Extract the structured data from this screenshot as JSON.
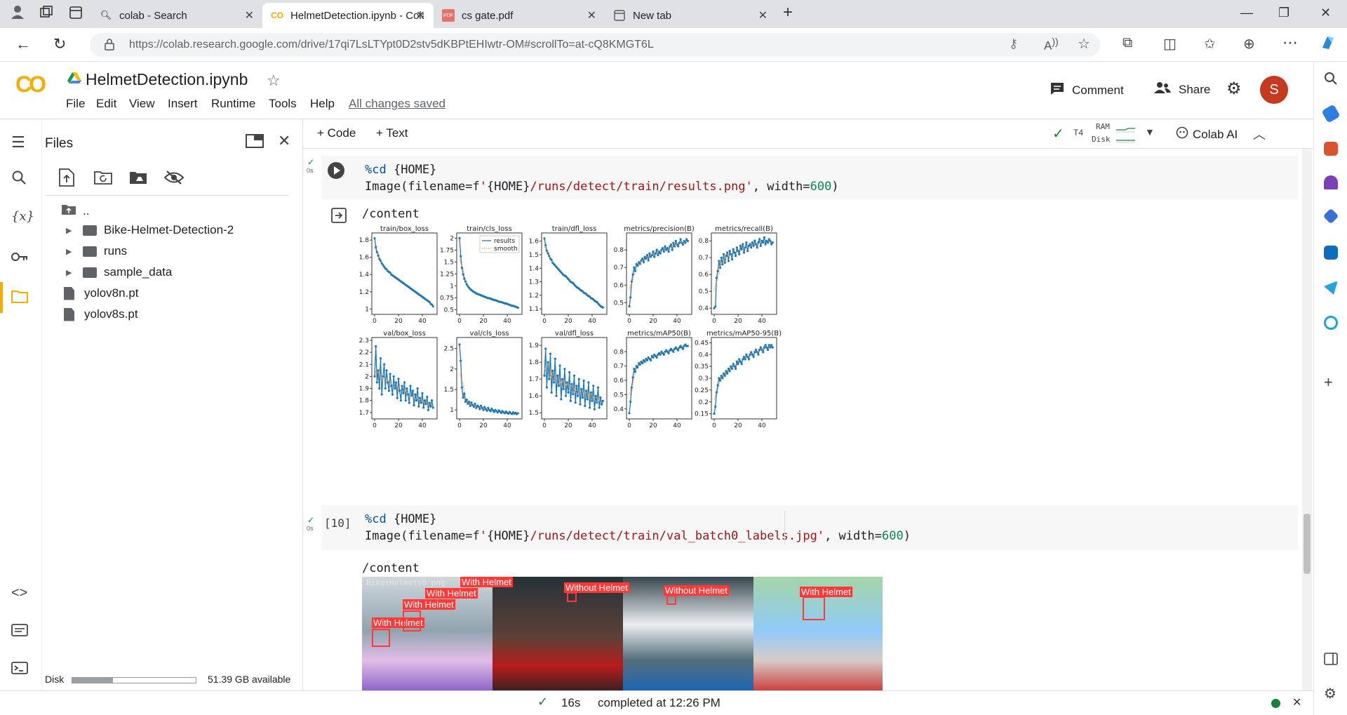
{
  "browser": {
    "tabs": [
      {
        "label": "colab - Search",
        "icon": "search-icon"
      },
      {
        "label": "HelmetDetection.ipynb - Colabo",
        "icon": "colab-logo-icon"
      },
      {
        "label": "cs gate.pdf",
        "icon": "pdf-icon"
      },
      {
        "label": "New tab",
        "icon": "new-tab-page-icon"
      }
    ],
    "url": "https://colab.research.google.com/drive/17qi7LsLTYpt0D2stv5dKBPtEHIwtr-OM#scrollTo=at-cQ8KMGT6L"
  },
  "colab": {
    "logo": "CO",
    "notebook_title": "HelmetDetection.ipynb",
    "menu": [
      "File",
      "Edit",
      "View",
      "Insert",
      "Runtime",
      "Tools",
      "Help"
    ],
    "saved_status": "All changes saved",
    "comment_label": "Comment",
    "share_label": "Share",
    "avatar_letter": "S",
    "add_code": "+ Code",
    "add_text": "+ Text",
    "runtime_type": "T4",
    "ram_label": "RAM",
    "disk_label": "Disk",
    "colab_ai": "Colab AI"
  },
  "files": {
    "title": "Files",
    "tree": [
      {
        "name": "..",
        "kind": "up"
      },
      {
        "name": "Bike-Helmet-Detection-2",
        "kind": "folder"
      },
      {
        "name": "runs",
        "kind": "folder"
      },
      {
        "name": "sample_data",
        "kind": "folder"
      },
      {
        "name": "yolov8n.pt",
        "kind": "file"
      },
      {
        "name": "yolov8s.pt",
        "kind": "file"
      }
    ],
    "disk_label": "Disk",
    "disk_available": "51.39 GB available",
    "disk_used_fraction": 0.33
  },
  "cells": [
    {
      "exec_time": "0s",
      "line1": "%cd {HOME}",
      "line2": "Image(filename=f'{HOME}/runs/detect/train/results.png', width=600)",
      "output_text": "/content"
    },
    {
      "exec_count": "[10]",
      "exec_time": "0s",
      "line1": "%cd {HOME}",
      "line2": "Image(filename=f'{HOME}/runs/detect/train/val_batch0_labels.jpg', width=600)",
      "output_text": "/content"
    }
  ],
  "chart_data": {
    "type": "line",
    "panels": [
      {
        "title": "train/box_loss",
        "xlim": [
          0,
          50
        ],
        "yticks": [
          1.0,
          1.2,
          1.4,
          1.6,
          1.8
        ],
        "ylim": [
          0.97,
          1.85
        ],
        "values": [
          1.82,
          1.72,
          1.66,
          1.62,
          1.58,
          1.56,
          1.53,
          1.51,
          1.49,
          1.47,
          1.46,
          1.44,
          1.43,
          1.42,
          1.4,
          1.39,
          1.38,
          1.37,
          1.36,
          1.35,
          1.34,
          1.33,
          1.32,
          1.31,
          1.3,
          1.29,
          1.28,
          1.27,
          1.26,
          1.25,
          1.24,
          1.23,
          1.22,
          1.21,
          1.2,
          1.19,
          1.18,
          1.17,
          1.16,
          1.15,
          1.14,
          1.13,
          1.12,
          1.11,
          1.1,
          1.09,
          1.08,
          1.06,
          1.05,
          1.03
        ]
      },
      {
        "title": "train/cls_loss",
        "xlim": [
          0,
          50
        ],
        "yticks": [
          0.5,
          0.75,
          1.0,
          1.25,
          1.5,
          1.75,
          2.0
        ],
        "ylim": [
          0.46,
          2.05
        ],
        "values": [
          2.0,
          1.62,
          1.38,
          1.24,
          1.15,
          1.09,
          1.03,
          0.99,
          0.96,
          0.93,
          0.91,
          0.89,
          0.87,
          0.86,
          0.84,
          0.83,
          0.82,
          0.81,
          0.8,
          0.79,
          0.78,
          0.77,
          0.76,
          0.75,
          0.74,
          0.74,
          0.73,
          0.72,
          0.71,
          0.7,
          0.7,
          0.69,
          0.68,
          0.67,
          0.66,
          0.66,
          0.65,
          0.64,
          0.63,
          0.63,
          0.62,
          0.61,
          0.6,
          0.59,
          0.58,
          0.58,
          0.57,
          0.56,
          0.55,
          0.54
        ],
        "legend": [
          "results",
          "smooth"
        ]
      },
      {
        "title": "train/dfl_loss",
        "xlim": [
          0,
          50
        ],
        "yticks": [
          1.1,
          1.2,
          1.3,
          1.4,
          1.5,
          1.6
        ],
        "ylim": [
          1.08,
          1.64
        ],
        "values": [
          1.62,
          1.57,
          1.53,
          1.51,
          1.49,
          1.47,
          1.46,
          1.44,
          1.43,
          1.42,
          1.41,
          1.4,
          1.39,
          1.38,
          1.37,
          1.36,
          1.35,
          1.345,
          1.34,
          1.33,
          1.32,
          1.31,
          1.3,
          1.295,
          1.29,
          1.28,
          1.27,
          1.26,
          1.255,
          1.25,
          1.24,
          1.235,
          1.23,
          1.22,
          1.215,
          1.21,
          1.2,
          1.195,
          1.19,
          1.18,
          1.175,
          1.17,
          1.16,
          1.155,
          1.15,
          1.14,
          1.13,
          1.12,
          1.115,
          1.11
        ]
      },
      {
        "title": "metrics/precision(B)",
        "xlim": [
          0,
          50
        ],
        "yticks": [
          0.5,
          0.6,
          0.7,
          0.8
        ],
        "ylim": [
          0.45,
          0.88
        ],
        "values": [
          0.48,
          0.53,
          0.62,
          0.66,
          0.7,
          0.68,
          0.72,
          0.71,
          0.73,
          0.72,
          0.74,
          0.75,
          0.73,
          0.76,
          0.75,
          0.77,
          0.74,
          0.78,
          0.76,
          0.77,
          0.79,
          0.76,
          0.78,
          0.8,
          0.77,
          0.79,
          0.78,
          0.8,
          0.81,
          0.79,
          0.82,
          0.8,
          0.81,
          0.79,
          0.82,
          0.83,
          0.8,
          0.84,
          0.82,
          0.85,
          0.83,
          0.82,
          0.84,
          0.86,
          0.84,
          0.83,
          0.85,
          0.84,
          0.86,
          0.85
        ]
      },
      {
        "title": "metrics/recall(B)",
        "xlim": [
          0,
          50
        ],
        "yticks": [
          0.4,
          0.5,
          0.6,
          0.7,
          0.8
        ],
        "ylim": [
          0.38,
          0.83
        ],
        "values": [
          0.4,
          0.41,
          0.58,
          0.62,
          0.68,
          0.64,
          0.7,
          0.66,
          0.72,
          0.67,
          0.71,
          0.73,
          0.68,
          0.74,
          0.72,
          0.69,
          0.75,
          0.73,
          0.71,
          0.76,
          0.74,
          0.72,
          0.77,
          0.75,
          0.78,
          0.73,
          0.76,
          0.79,
          0.74,
          0.77,
          0.78,
          0.76,
          0.79,
          0.77,
          0.8,
          0.78,
          0.76,
          0.79,
          0.81,
          0.77,
          0.8,
          0.79,
          0.82,
          0.78,
          0.8,
          0.79,
          0.81,
          0.8,
          0.78,
          0.79
        ]
      },
      {
        "title": "val/box_loss",
        "xlim": [
          0,
          50
        ],
        "yticks": [
          1.7,
          1.8,
          1.9,
          2.0,
          2.1,
          2.2,
          2.3
        ],
        "ylim": [
          1.67,
          2.3
        ],
        "values": [
          2.0,
          2.25,
          1.95,
          2.05,
          1.9,
          2.15,
          1.85,
          2.0,
          2.1,
          1.9,
          2.05,
          1.95,
          1.88,
          2.02,
          1.92,
          1.85,
          2.0,
          1.9,
          1.95,
          1.82,
          1.98,
          1.88,
          1.8,
          1.92,
          1.86,
          1.95,
          1.8,
          1.9,
          1.85,
          1.78,
          1.92,
          1.84,
          1.88,
          1.76,
          1.85,
          1.8,
          1.9,
          1.75,
          1.82,
          1.78,
          1.86,
          1.74,
          1.8,
          1.77,
          1.83,
          1.72,
          1.78,
          1.75,
          1.8,
          1.74
        ]
      },
      {
        "title": "val/cls_loss",
        "xlim": [
          0,
          50
        ],
        "yticks": [
          1.0,
          1.5,
          2.0,
          2.5
        ],
        "ylim": [
          0.85,
          2.7
        ],
        "values": [
          2.6,
          2.2,
          1.55,
          1.3,
          1.4,
          1.2,
          1.25,
          1.15,
          1.2,
          1.1,
          1.18,
          1.12,
          1.08,
          1.15,
          1.05,
          1.1,
          1.08,
          1.02,
          1.1,
          1.05,
          1.0,
          1.07,
          1.02,
          0.98,
          1.05,
          1.0,
          0.97,
          1.03,
          0.99,
          0.95,
          1.0,
          0.97,
          0.94,
          0.99,
          0.96,
          0.93,
          0.97,
          0.94,
          0.92,
          0.96,
          0.93,
          0.91,
          0.95,
          0.92,
          0.9,
          0.94,
          0.91,
          0.93,
          0.9,
          0.92
        ]
      },
      {
        "title": "val/dfl_loss",
        "xlim": [
          0,
          50
        ],
        "yticks": [
          1.5,
          1.6,
          1.7,
          1.8,
          1.9
        ],
        "ylim": [
          1.48,
          1.93
        ],
        "values": [
          1.72,
          1.88,
          1.65,
          1.8,
          1.7,
          1.85,
          1.62,
          1.75,
          1.68,
          1.82,
          1.6,
          1.72,
          1.66,
          1.78,
          1.58,
          1.7,
          1.64,
          1.76,
          1.6,
          1.68,
          1.62,
          1.74,
          1.57,
          1.67,
          1.61,
          1.72,
          1.56,
          1.66,
          1.6,
          1.7,
          1.55,
          1.64,
          1.59,
          1.69,
          1.54,
          1.63,
          1.58,
          1.68,
          1.53,
          1.62,
          1.57,
          1.66,
          1.52,
          1.6,
          1.56,
          1.65,
          1.53,
          1.59,
          1.55,
          1.57
        ]
      },
      {
        "title": "metrics/mAP50(B)",
        "xlim": [
          0,
          50
        ],
        "yticks": [
          0.4,
          0.5,
          0.6,
          0.7,
          0.8
        ],
        "ylim": [
          0.35,
          0.88
        ],
        "values": [
          0.37,
          0.45,
          0.55,
          0.62,
          0.68,
          0.66,
          0.7,
          0.69,
          0.72,
          0.71,
          0.73,
          0.72,
          0.74,
          0.73,
          0.75,
          0.74,
          0.76,
          0.75,
          0.74,
          0.77,
          0.76,
          0.78,
          0.77,
          0.76,
          0.78,
          0.79,
          0.78,
          0.8,
          0.79,
          0.78,
          0.8,
          0.81,
          0.8,
          0.79,
          0.81,
          0.82,
          0.81,
          0.8,
          0.82,
          0.83,
          0.82,
          0.81,
          0.83,
          0.84,
          0.83,
          0.82,
          0.84,
          0.85,
          0.84,
          0.84
        ]
      },
      {
        "title": "metrics/mAP50-95(B)",
        "xlim": [
          0,
          50
        ],
        "yticks": [
          0.15,
          0.2,
          0.25,
          0.3,
          0.35,
          0.4,
          0.45
        ],
        "ylim": [
          0.14,
          0.46
        ],
        "values": [
          0.15,
          0.18,
          0.24,
          0.27,
          0.3,
          0.29,
          0.31,
          0.3,
          0.32,
          0.31,
          0.33,
          0.32,
          0.34,
          0.33,
          0.35,
          0.34,
          0.36,
          0.35,
          0.34,
          0.37,
          0.36,
          0.38,
          0.37,
          0.36,
          0.38,
          0.39,
          0.38,
          0.4,
          0.39,
          0.38,
          0.4,
          0.41,
          0.4,
          0.39,
          0.41,
          0.42,
          0.41,
          0.4,
          0.42,
          0.43,
          0.42,
          0.41,
          0.43,
          0.44,
          0.43,
          0.42,
          0.44,
          0.43,
          0.44,
          0.43
        ]
      }
    ],
    "xticks": [
      0,
      20,
      40
    ]
  },
  "val_batch": {
    "labels": [
      "With Helmet",
      "With Helmet",
      "With Helmet",
      "With Helmet",
      "Without Helmet",
      "Without Helmet",
      "With Helmet"
    ],
    "filename_fragment": "BikesHelmets0_png"
  },
  "statusbar": {
    "duration": "16s",
    "completed": "completed at 12:26 PM"
  },
  "colors": {
    "accent": "#f9ab00",
    "plot_line": "#1f77b4",
    "avatar": "#c5391f",
    "label_red": "#ff3838"
  }
}
